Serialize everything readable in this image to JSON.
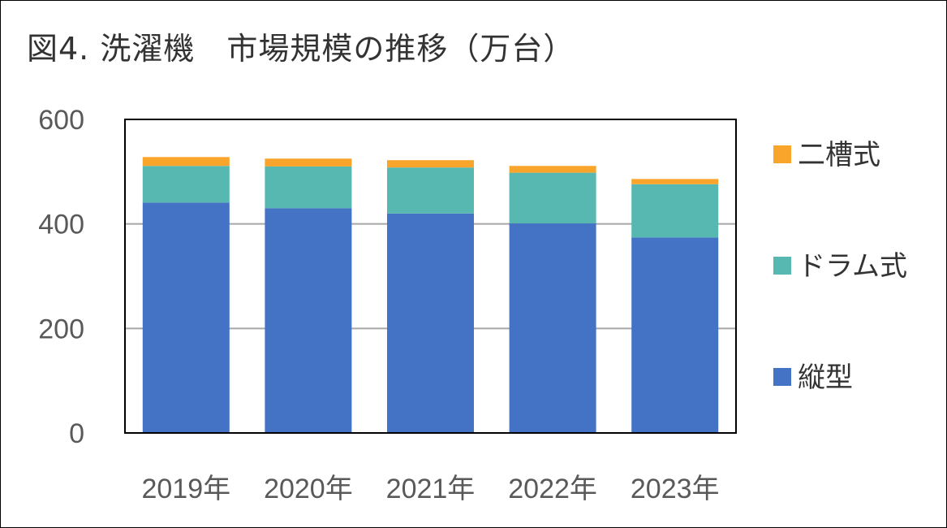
{
  "chart_data": {
    "type": "bar",
    "stacked": true,
    "title": "図4. 洗濯機　市場規模の推移（万台）",
    "categories": [
      "2019年",
      "2020年",
      "2021年",
      "2022年",
      "2023年"
    ],
    "series": [
      {
        "name": "縦型",
        "color": "#4472C4",
        "values": [
          441,
          430,
          420,
          401,
          374
        ]
      },
      {
        "name": "ドラム式",
        "color": "#56B8B0",
        "values": [
          70,
          80,
          88,
          97,
          102
        ]
      },
      {
        "name": "二槽式",
        "color": "#F9A42B",
        "values": [
          17,
          15,
          14,
          13,
          10
        ]
      }
    ],
    "ylim": [
      0,
      600
    ],
    "yticks": [
      0,
      200,
      400,
      600
    ],
    "grid": true,
    "legend": "right",
    "xlabel": "",
    "ylabel": ""
  }
}
